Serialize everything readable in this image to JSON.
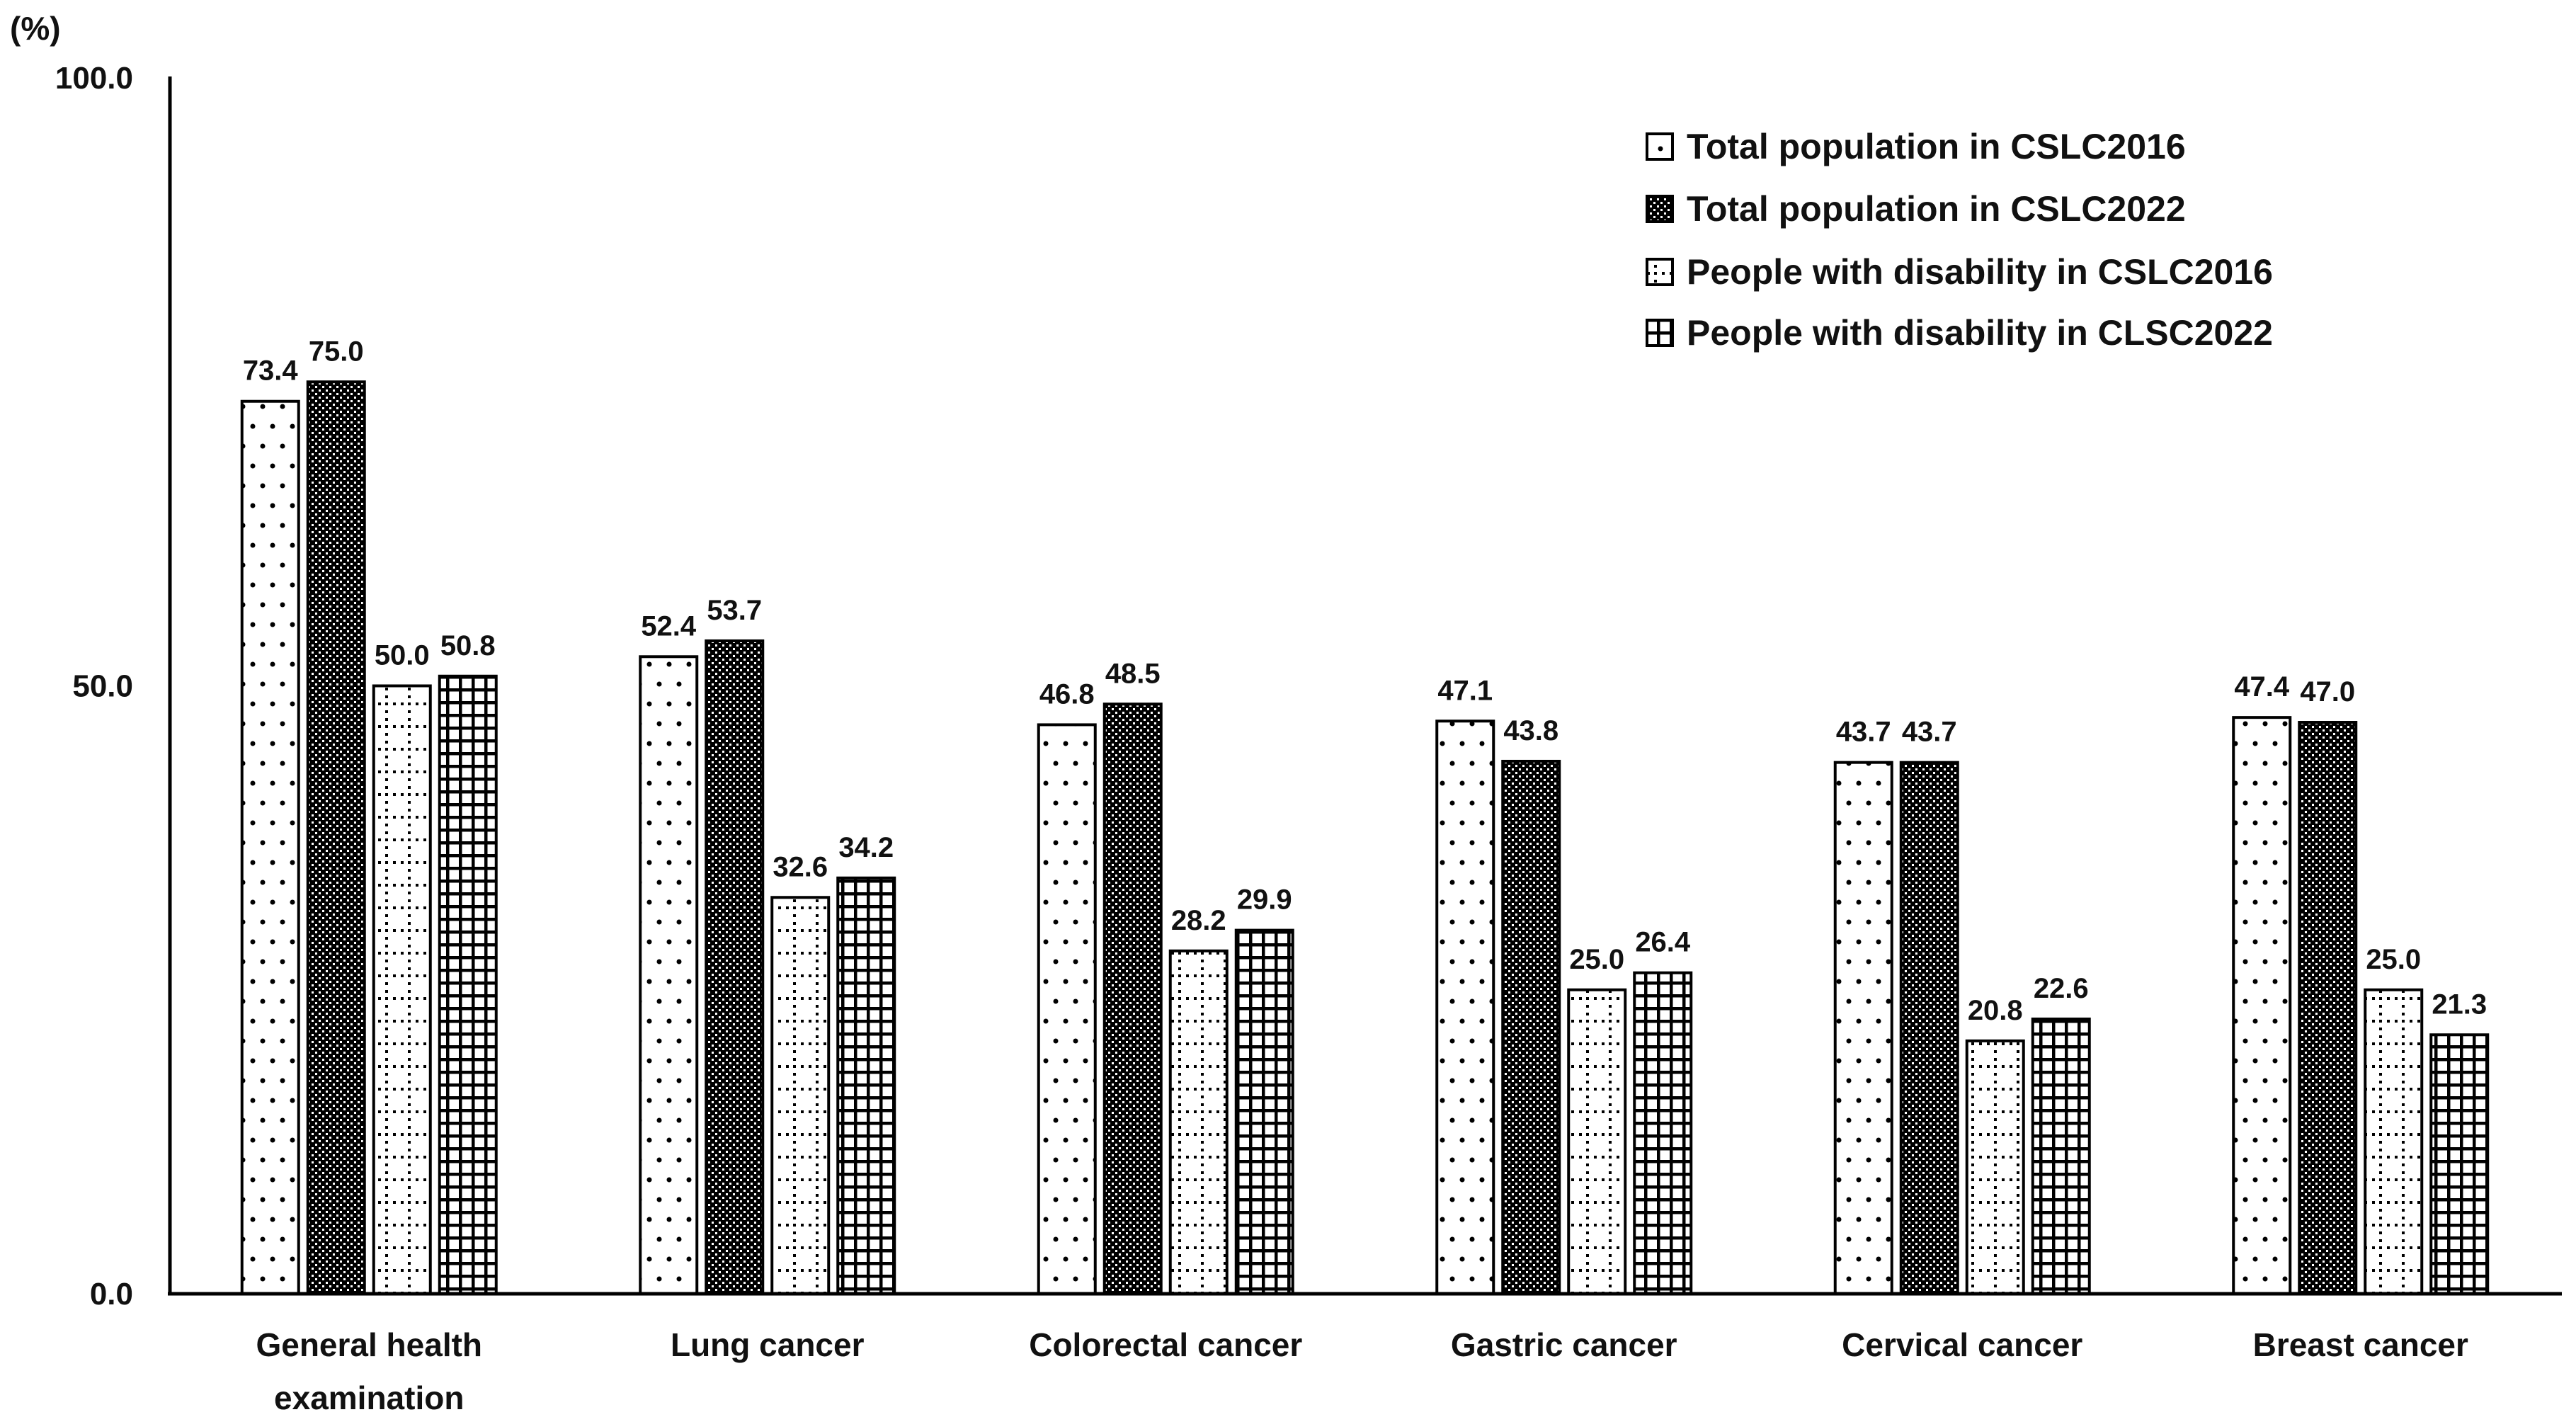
{
  "chart_data": {
    "type": "bar",
    "title": "",
    "y_unit_label": "(%)",
    "xlabel": "",
    "ylabel": "",
    "ylim": [
      0,
      100
    ],
    "grid": false,
    "legend_position": "top-right",
    "ink_color": "#111111",
    "axis_color": "#000000",
    "bar_fill_color": "#ffffff",
    "yticks": [
      {
        "value": 100,
        "label": "100.0"
      },
      {
        "value": 50,
        "label": "50.0"
      },
      {
        "value": 0,
        "label": "0.0"
      }
    ],
    "categories": [
      {
        "lines": [
          "General health",
          "examination"
        ]
      },
      {
        "lines": [
          "Lung cancer"
        ]
      },
      {
        "lines": [
          "Colorectal cancer"
        ]
      },
      {
        "lines": [
          "Gastric cancer"
        ]
      },
      {
        "lines": [
          "Cervical cancer"
        ]
      },
      {
        "lines": [
          "Breast cancer"
        ]
      }
    ],
    "series": [
      {
        "name": "Total population in CSLC2016",
        "pattern": "white-dots",
        "values": [
          73.4,
          52.4,
          46.8,
          47.1,
          43.7,
          47.4
        ],
        "labels": [
          "73.4",
          "52.4",
          "46.8",
          "47.1",
          "43.7",
          "47.4"
        ]
      },
      {
        "name": "Total population in CSLC2022",
        "pattern": "dark-checker",
        "values": [
          75.0,
          53.7,
          48.5,
          43.8,
          43.7,
          47.0
        ],
        "labels": [
          "75.0",
          "53.7",
          "48.5",
          "43.8",
          "43.7",
          "47.0"
        ]
      },
      {
        "name": "People with disability in CSLC2016",
        "pattern": "dotted-grid",
        "values": [
          50.0,
          32.6,
          28.2,
          25.0,
          20.8,
          25.0
        ],
        "labels": [
          "50.0",
          "32.6",
          "28.2",
          "25.0",
          "20.8",
          "25.0"
        ]
      },
      {
        "name": "People with disability in CLSC2022",
        "pattern": "solid-grid",
        "values": [
          50.8,
          34.2,
          29.9,
          26.4,
          22.6,
          21.3
        ],
        "labels": [
          "50.8",
          "34.2",
          "29.9",
          "26.4",
          "22.6",
          "21.3"
        ]
      }
    ]
  }
}
